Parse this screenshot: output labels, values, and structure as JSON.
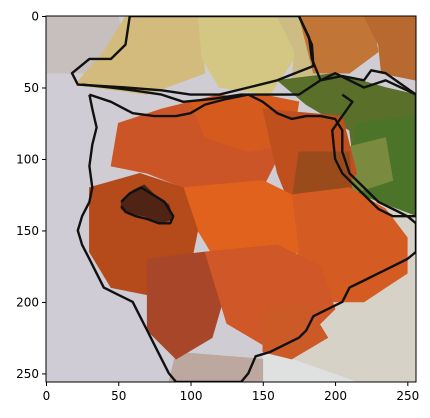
{
  "chart_data": {
    "type": "heatmap",
    "description_kind": "superpixel-segmented image shown with matplotlib imshow axes",
    "title": "",
    "xlabel": "",
    "ylabel": "",
    "xlim": [
      0,
      256
    ],
    "ylim": [
      256,
      0
    ],
    "grid": false,
    "legend": "none",
    "xticks": [
      0,
      50,
      100,
      150,
      200,
      250
    ],
    "yticks": [
      0,
      50,
      100,
      150,
      200,
      250
    ],
    "image_size": [
      256,
      256
    ],
    "regions": [
      {
        "name": "top-left-bg",
        "color": "#c6bfbe",
        "points": [
          [
            0,
            0
          ],
          [
            50,
            0
          ],
          [
            55,
            25
          ],
          [
            30,
            40
          ],
          [
            0,
            40
          ]
        ]
      },
      {
        "name": "top-tan-1",
        "color": "#d2bb7d",
        "points": [
          [
            55,
            0
          ],
          [
            105,
            0
          ],
          [
            110,
            40
          ],
          [
            70,
            55
          ],
          [
            20,
            48
          ],
          [
            40,
            25
          ]
        ]
      },
      {
        "name": "top-tan-2",
        "color": "#d4c683",
        "points": [
          [
            105,
            0
          ],
          [
            160,
            0
          ],
          [
            175,
            25
          ],
          [
            155,
            55
          ],
          [
            120,
            50
          ],
          [
            108,
            30
          ]
        ]
      },
      {
        "name": "top-tan-3",
        "color": "#cdbd84",
        "points": [
          [
            160,
            0
          ],
          [
            175,
            0
          ],
          [
            185,
            22
          ],
          [
            190,
            40
          ],
          [
            170,
            45
          ],
          [
            172,
            25
          ]
        ]
      },
      {
        "name": "top-right-orange-1",
        "color": "#c17638",
        "points": [
          [
            175,
            0
          ],
          [
            225,
            0
          ],
          [
            230,
            25
          ],
          [
            210,
            40
          ],
          [
            185,
            40
          ],
          [
            180,
            20
          ]
        ]
      },
      {
        "name": "top-right-orange-2",
        "color": "#b8692f",
        "points": [
          [
            220,
            0
          ],
          [
            256,
            0
          ],
          [
            256,
            45
          ],
          [
            232,
            40
          ],
          [
            230,
            20
          ]
        ]
      },
      {
        "name": "green-1",
        "color": "#5a6f2a",
        "points": [
          [
            160,
            45
          ],
          [
            200,
            40
          ],
          [
            235,
            50
          ],
          [
            256,
            55
          ],
          [
            256,
            110
          ],
          [
            215,
            120
          ],
          [
            210,
            80
          ],
          [
            180,
            62
          ]
        ]
      },
      {
        "name": "green-2",
        "color": "#4b7428",
        "points": [
          [
            215,
            75
          ],
          [
            256,
            70
          ],
          [
            256,
            140
          ],
          [
            240,
            145
          ],
          [
            210,
            130
          ],
          [
            212,
            95
          ]
        ]
      },
      {
        "name": "green-olive",
        "color": "#7a8b3f",
        "points": [
          [
            195,
            95
          ],
          [
            235,
            85
          ],
          [
            240,
            115
          ],
          [
            210,
            125
          ]
        ]
      },
      {
        "name": "right-bg",
        "color": "#d6d2c8",
        "points": [
          [
            190,
            115
          ],
          [
            256,
            140
          ],
          [
            256,
            256
          ],
          [
            215,
            256
          ],
          [
            170,
            245
          ],
          [
            190,
            200
          ],
          [
            205,
            160
          ]
        ]
      },
      {
        "name": "left-bg",
        "color": "#cfccd5",
        "points": [
          [
            0,
            40
          ],
          [
            25,
            48
          ],
          [
            35,
            80
          ],
          [
            25,
            130
          ],
          [
            20,
            150
          ],
          [
            35,
            185
          ],
          [
            60,
            200
          ],
          [
            80,
            210
          ],
          [
            90,
            256
          ],
          [
            0,
            256
          ]
        ]
      },
      {
        "name": "bottom-right-bg",
        "color": "#dfe1e0",
        "points": [
          [
            150,
            235
          ],
          [
            170,
            240
          ],
          [
            215,
            256
          ],
          [
            150,
            256
          ]
        ]
      },
      {
        "name": "bottom-center-bg",
        "color": "#bca89f",
        "points": [
          [
            90,
            235
          ],
          [
            150,
            240
          ],
          [
            150,
            256
          ],
          [
            85,
            256
          ]
        ]
      },
      {
        "name": "orange-body-1",
        "color": "#cc5528",
        "points": [
          [
            50,
            75
          ],
          [
            80,
            65
          ],
          [
            120,
            55
          ],
          [
            150,
            60
          ],
          [
            165,
            90
          ],
          [
            150,
            120
          ],
          [
            120,
            130
          ],
          [
            95,
            120
          ],
          [
            70,
            110
          ],
          [
            45,
            105
          ]
        ]
      },
      {
        "name": "orange-body-2",
        "color": "#d45a1e",
        "points": [
          [
            100,
            60
          ],
          [
            150,
            55
          ],
          [
            175,
            60
          ],
          [
            170,
            90
          ],
          [
            140,
            95
          ],
          [
            110,
            85
          ]
        ]
      },
      {
        "name": "orange-body-3",
        "color": "#c04f1e",
        "points": [
          [
            150,
            65
          ],
          [
            205,
            70
          ],
          [
            215,
            110
          ],
          [
            200,
            130
          ],
          [
            170,
            135
          ],
          [
            160,
            110
          ]
        ]
      },
      {
        "name": "orange-body-4",
        "color": "#9a4b1c",
        "points": [
          [
            175,
            95
          ],
          [
            210,
            95
          ],
          [
            212,
            130
          ],
          [
            190,
            150
          ],
          [
            170,
            130
          ]
        ]
      },
      {
        "name": "orange-body-5",
        "color": "#d45c23",
        "points": [
          [
            170,
            125
          ],
          [
            210,
            120
          ],
          [
            235,
            135
          ],
          [
            250,
            155
          ],
          [
            250,
            180
          ],
          [
            220,
            200
          ],
          [
            195,
            200
          ],
          [
            175,
            175
          ]
        ]
      },
      {
        "name": "orange-body-6",
        "color": "#e0621c",
        "points": [
          [
            95,
            120
          ],
          [
            150,
            115
          ],
          [
            170,
            125
          ],
          [
            175,
            165
          ],
          [
            150,
            180
          ],
          [
            120,
            175
          ],
          [
            105,
            150
          ]
        ]
      },
      {
        "name": "orange-body-7",
        "color": "#b54a1b",
        "points": [
          [
            30,
            120
          ],
          [
            65,
            110
          ],
          [
            95,
            120
          ],
          [
            105,
            150
          ],
          [
            100,
            175
          ],
          [
            70,
            195
          ],
          [
            45,
            190
          ],
          [
            30,
            165
          ]
        ]
      },
      {
        "name": "orange-body-8",
        "color": "#a8462a",
        "points": [
          [
            70,
            170
          ],
          [
            110,
            165
          ],
          [
            125,
            190
          ],
          [
            115,
            225
          ],
          [
            90,
            240
          ],
          [
            70,
            220
          ]
        ]
      },
      {
        "name": "orange-body-9",
        "color": "#cf5728",
        "points": [
          [
            110,
            165
          ],
          [
            160,
            160
          ],
          [
            190,
            175
          ],
          [
            200,
            205
          ],
          [
            180,
            225
          ],
          [
            150,
            230
          ],
          [
            125,
            215
          ]
        ]
      },
      {
        "name": "orange-body-10",
        "color": "#cc5a26",
        "points": [
          [
            150,
            205
          ],
          [
            180,
            200
          ],
          [
            195,
            225
          ],
          [
            170,
            240
          ],
          [
            150,
            235
          ]
        ]
      },
      {
        "name": "dark-brown-blob",
        "color": "#4f2415",
        "points": [
          [
            52,
            130
          ],
          [
            60,
            122
          ],
          [
            68,
            118
          ],
          [
            75,
            125
          ],
          [
            85,
            132
          ],
          [
            88,
            142
          ],
          [
            80,
            145
          ],
          [
            68,
            140
          ],
          [
            58,
            138
          ],
          [
            52,
            135
          ]
        ]
      }
    ],
    "outline_color": "#111111",
    "outlines": [
      {
        "name": "tan-region-outline",
        "points": [
          [
            58,
            0
          ],
          [
            175,
            0
          ],
          [
            184,
            20
          ],
          [
            185,
            35
          ],
          [
            160,
            45
          ],
          [
            140,
            50
          ],
          [
            120,
            55
          ],
          [
            100,
            55
          ],
          [
            80,
            52
          ],
          [
            55,
            50
          ],
          [
            22,
            48
          ],
          [
            18,
            40
          ],
          [
            30,
            30
          ],
          [
            45,
            30
          ],
          [
            55,
            20
          ],
          [
            58,
            0
          ]
        ]
      },
      {
        "name": "orange-region-outline",
        "points": [
          [
            25,
            48
          ],
          [
            45,
            50
          ],
          [
            60,
            52
          ],
          [
            80,
            55
          ],
          [
            95,
            60
          ],
          [
            115,
            58
          ],
          [
            135,
            55
          ],
          [
            155,
            55
          ],
          [
            175,
            55
          ],
          [
            190,
            45
          ],
          [
            200,
            40
          ],
          [
            220,
            50
          ],
          [
            235,
            45
          ],
          [
            256,
            55
          ],
          [
            256,
            140
          ],
          [
            240,
            140
          ],
          [
            230,
            135
          ],
          [
            215,
            120
          ],
          [
            205,
            110
          ],
          [
            200,
            100
          ],
          [
            198,
            80
          ],
          [
            205,
            70
          ],
          [
            212,
            60
          ],
          [
            205,
            55
          ]
        ]
      },
      {
        "name": "green-region-outline",
        "points": [
          [
            175,
            0
          ],
          [
            182,
            15
          ],
          [
            184,
            30
          ],
          [
            190,
            45
          ],
          [
            205,
            42
          ],
          [
            220,
            45
          ],
          [
            225,
            38
          ],
          [
            235,
            40
          ],
          [
            256,
            55
          ]
        ]
      },
      {
        "name": "body-outline",
        "points": [
          [
            30,
            55
          ],
          [
            45,
            60
          ],
          [
            60,
            68
          ],
          [
            75,
            70
          ],
          [
            90,
            70
          ],
          [
            100,
            68
          ],
          [
            110,
            62
          ],
          [
            125,
            58
          ],
          [
            140,
            55
          ],
          [
            150,
            60
          ],
          [
            160,
            68
          ],
          [
            170,
            72
          ],
          [
            180,
            70
          ],
          [
            190,
            70
          ],
          [
            200,
            72
          ],
          [
            205,
            80
          ],
          [
            205,
            95
          ],
          [
            210,
            110
          ],
          [
            220,
            120
          ],
          [
            230,
            130
          ],
          [
            240,
            135
          ],
          [
            250,
            140
          ],
          [
            256,
            145
          ],
          [
            256,
            165
          ],
          [
            250,
            170
          ],
          [
            240,
            175
          ],
          [
            230,
            180
          ],
          [
            220,
            185
          ],
          [
            210,
            190
          ],
          [
            205,
            200
          ],
          [
            195,
            205
          ],
          [
            185,
            210
          ],
          [
            180,
            220
          ],
          [
            175,
            225
          ],
          [
            165,
            230
          ],
          [
            155,
            235
          ],
          [
            145,
            238
          ],
          [
            140,
            250
          ],
          [
            135,
            256
          ],
          [
            90,
            256
          ],
          [
            85,
            250
          ],
          [
            80,
            240
          ],
          [
            75,
            230
          ],
          [
            70,
            220
          ],
          [
            65,
            210
          ],
          [
            60,
            200
          ],
          [
            50,
            195
          ],
          [
            40,
            190
          ],
          [
            35,
            180
          ],
          [
            30,
            170
          ],
          [
            25,
            160
          ],
          [
            22,
            150
          ],
          [
            25,
            140
          ],
          [
            30,
            130
          ],
          [
            32,
            120
          ],
          [
            30,
            105
          ],
          [
            32,
            90
          ],
          [
            35,
            78
          ],
          [
            32,
            65
          ],
          [
            30,
            55
          ]
        ]
      },
      {
        "name": "blob-outline",
        "points": [
          [
            52,
            130
          ],
          [
            58,
            124
          ],
          [
            66,
            120
          ],
          [
            74,
            125
          ],
          [
            82,
            130
          ],
          [
            88,
            140
          ],
          [
            86,
            145
          ],
          [
            78,
            145
          ],
          [
            70,
            142
          ],
          [
            62,
            140
          ],
          [
            55,
            137
          ],
          [
            52,
            133
          ]
        ]
      }
    ]
  }
}
